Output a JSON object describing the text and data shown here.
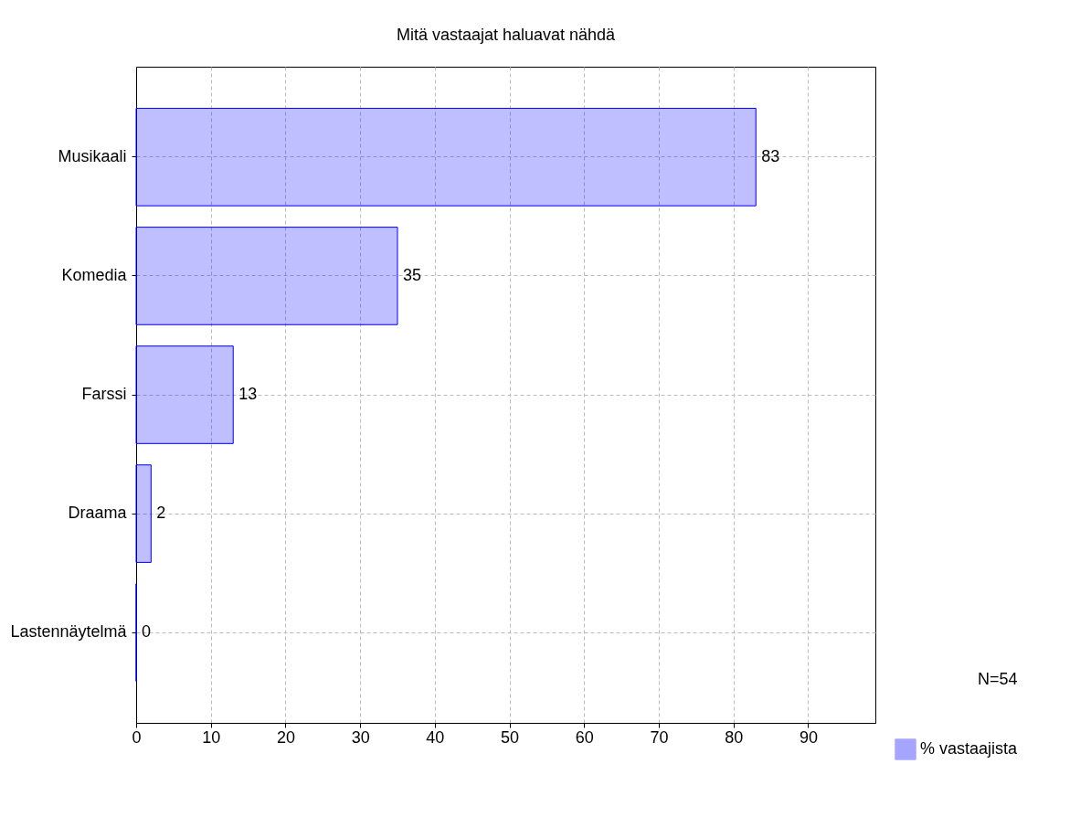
{
  "chart_data": {
    "type": "bar",
    "orientation": "horizontal",
    "title": "Mitä vastaajat haluavat nähdä",
    "categories": [
      "Musikaali",
      "Komedia",
      "Farssi",
      "Draama",
      "Lastennäytelmä"
    ],
    "series": [
      {
        "name": "% vastaajista",
        "color": "#0000ff",
        "values": [
          83,
          35,
          13,
          2,
          0
        ]
      }
    ],
    "xlim": [
      0,
      99
    ],
    "xticks": [
      0,
      10,
      20,
      30,
      40,
      50,
      60,
      70,
      80,
      90
    ],
    "grid": true,
    "data_labels": true,
    "legend": "bottom right",
    "annotations": [
      "N=54"
    ]
  }
}
